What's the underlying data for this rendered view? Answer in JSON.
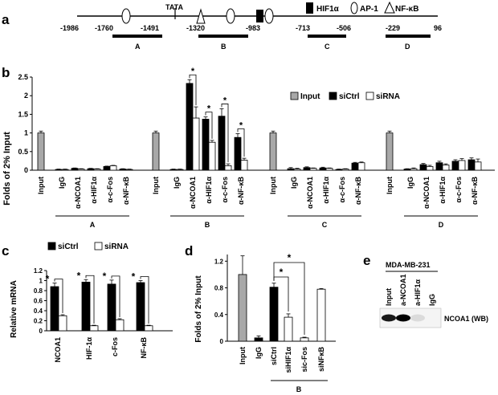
{
  "colors": {
    "input": "#a8a8a8",
    "siCtrl": "#000000",
    "siRNA": "#ffffff",
    "axis": "#000000"
  },
  "panel_a": {
    "label": "a",
    "tata": "TATA",
    "legend": [
      {
        "shape": "filled-rect",
        "text": "HIF1α"
      },
      {
        "shape": "ellipse",
        "text": "AP-1"
      },
      {
        "shape": "triangle",
        "text": "NF-κB"
      }
    ],
    "positions": [
      "-1986",
      "-1760",
      "-1491",
      "-1320",
      "-983",
      "-713",
      "-506",
      "-229",
      "96"
    ],
    "regions": [
      "A",
      "B",
      "C",
      "D"
    ]
  },
  "panel_b": {
    "label": "b"
  },
  "panel_c": {
    "label": "c"
  },
  "panel_d": {
    "label": "d"
  },
  "panel_e": {
    "label": "e",
    "cell_line": "MDA-MB-231",
    "lanes": [
      "Input",
      "a-NCOA1",
      "a-HIF1α",
      "IgG"
    ],
    "band_intensity": [
      0.9,
      1.0,
      0.1,
      0.0
    ],
    "wb_label": "NCOA1 (WB)"
  },
  "chart_data": [
    {
      "panel": "b",
      "type": "bar",
      "ylabel": "Folds of 2% Input",
      "ylim": [
        0,
        2.5
      ],
      "yticks": [
        "0",
        "0.5",
        "1",
        "1.5",
        "2",
        "2.5"
      ],
      "legend_position": "top-right",
      "legend": [
        "Input",
        "siCtrl",
        "siRNA"
      ],
      "group_labels": [
        "A",
        "B",
        "C",
        "D"
      ],
      "categories": [
        "Input",
        "IgG",
        "α-NCOA1",
        "α-HIF1α",
        "α-c-Fos",
        "α-NF-κB"
      ],
      "groups": [
        {
          "name": "A",
          "input": 1.0,
          "siCtrl": [
            0.02,
            0.05,
            0.04,
            0.1,
            0.03
          ],
          "siRNA": [
            0.02,
            0.03,
            0.03,
            0.12,
            0.02
          ],
          "err_ctrl": [
            0.01,
            0.01,
            0.01,
            0.01,
            0.01
          ],
          "err_rna": [
            0.01,
            0.01,
            0.01,
            0.01,
            0.01
          ]
        },
        {
          "name": "B",
          "input": 1.0,
          "siCtrl": [
            0.02,
            2.33,
            1.37,
            1.45,
            0.88
          ],
          "siRNA": [
            0.02,
            1.4,
            0.75,
            0.12,
            0.27
          ],
          "err_ctrl": [
            0.01,
            0.1,
            0.06,
            0.2,
            0.1
          ],
          "err_rna": [
            0.01,
            0.3,
            0.05,
            0.05,
            0.05
          ]
        },
        {
          "name": "C",
          "input": 1.0,
          "siCtrl": [
            0.04,
            0.07,
            0.06,
            0.02,
            0.19
          ],
          "siRNA": [
            0.03,
            0.05,
            0.05,
            0.03,
            0.2
          ],
          "err_ctrl": [
            0.03,
            0.02,
            0.02,
            0.01,
            0.02
          ],
          "err_rna": [
            0.02,
            0.01,
            0.01,
            0.01,
            0.02
          ]
        },
        {
          "name": "D",
          "input": 1.0,
          "siCtrl": [
            0.03,
            0.15,
            0.2,
            0.24,
            0.28
          ],
          "siRNA": [
            0.04,
            0.1,
            0.14,
            0.26,
            0.22
          ],
          "err_ctrl": [
            0.01,
            0.03,
            0.04,
            0.04,
            0.05
          ],
          "err_rna": [
            0.02,
            0.03,
            0.03,
            0.05,
            0.08
          ]
        }
      ],
      "error_input": 0.05,
      "significance": [
        "*",
        "*",
        "*",
        "*"
      ]
    },
    {
      "panel": "c",
      "type": "bar",
      "ylabel": "Relative mRNA",
      "ylim": [
        0,
        1.2
      ],
      "yticks": [
        "0",
        "0.2",
        "0.4",
        "0.6",
        "0.8",
        "1",
        "1.2"
      ],
      "legend": [
        "siCtrl",
        "siRNA"
      ],
      "legend_position": "top",
      "categories": [
        "NCOA1",
        "HIF-1α",
        "c-Fos",
        "NF-κB"
      ],
      "series": [
        {
          "name": "siCtrl",
          "values": [
            0.88,
            0.97,
            0.93,
            0.96
          ],
          "err": [
            0.07,
            0.05,
            0.08,
            0.04
          ]
        },
        {
          "name": "siRNA",
          "values": [
            0.3,
            0.1,
            0.22,
            0.1
          ],
          "err": [
            0.02,
            0.01,
            0.02,
            0.01
          ]
        }
      ],
      "significance": [
        "*",
        "*",
        "*",
        "*"
      ]
    },
    {
      "panel": "d",
      "type": "bar",
      "ylabel": "Folds of 2% Input",
      "ylim": [
        0,
        1.3
      ],
      "yticks": [
        "0",
        "0.4",
        "0.8",
        "1.2"
      ],
      "group_label": "B",
      "categories": [
        "Input",
        "IgG",
        "siCtrl",
        "siHIF1α",
        "sic-Fos",
        "siNFκB"
      ],
      "values": [
        1.0,
        0.05,
        0.81,
        0.36,
        0.05,
        0.78
      ],
      "errors": [
        0.28,
        0.03,
        0.06,
        0.05,
        0.01,
        0.01
      ],
      "fills": [
        "input",
        "siCtrl",
        "siCtrl",
        "siRNA",
        "siRNA",
        "siRNA"
      ],
      "significance": [
        "*",
        "*"
      ]
    }
  ]
}
